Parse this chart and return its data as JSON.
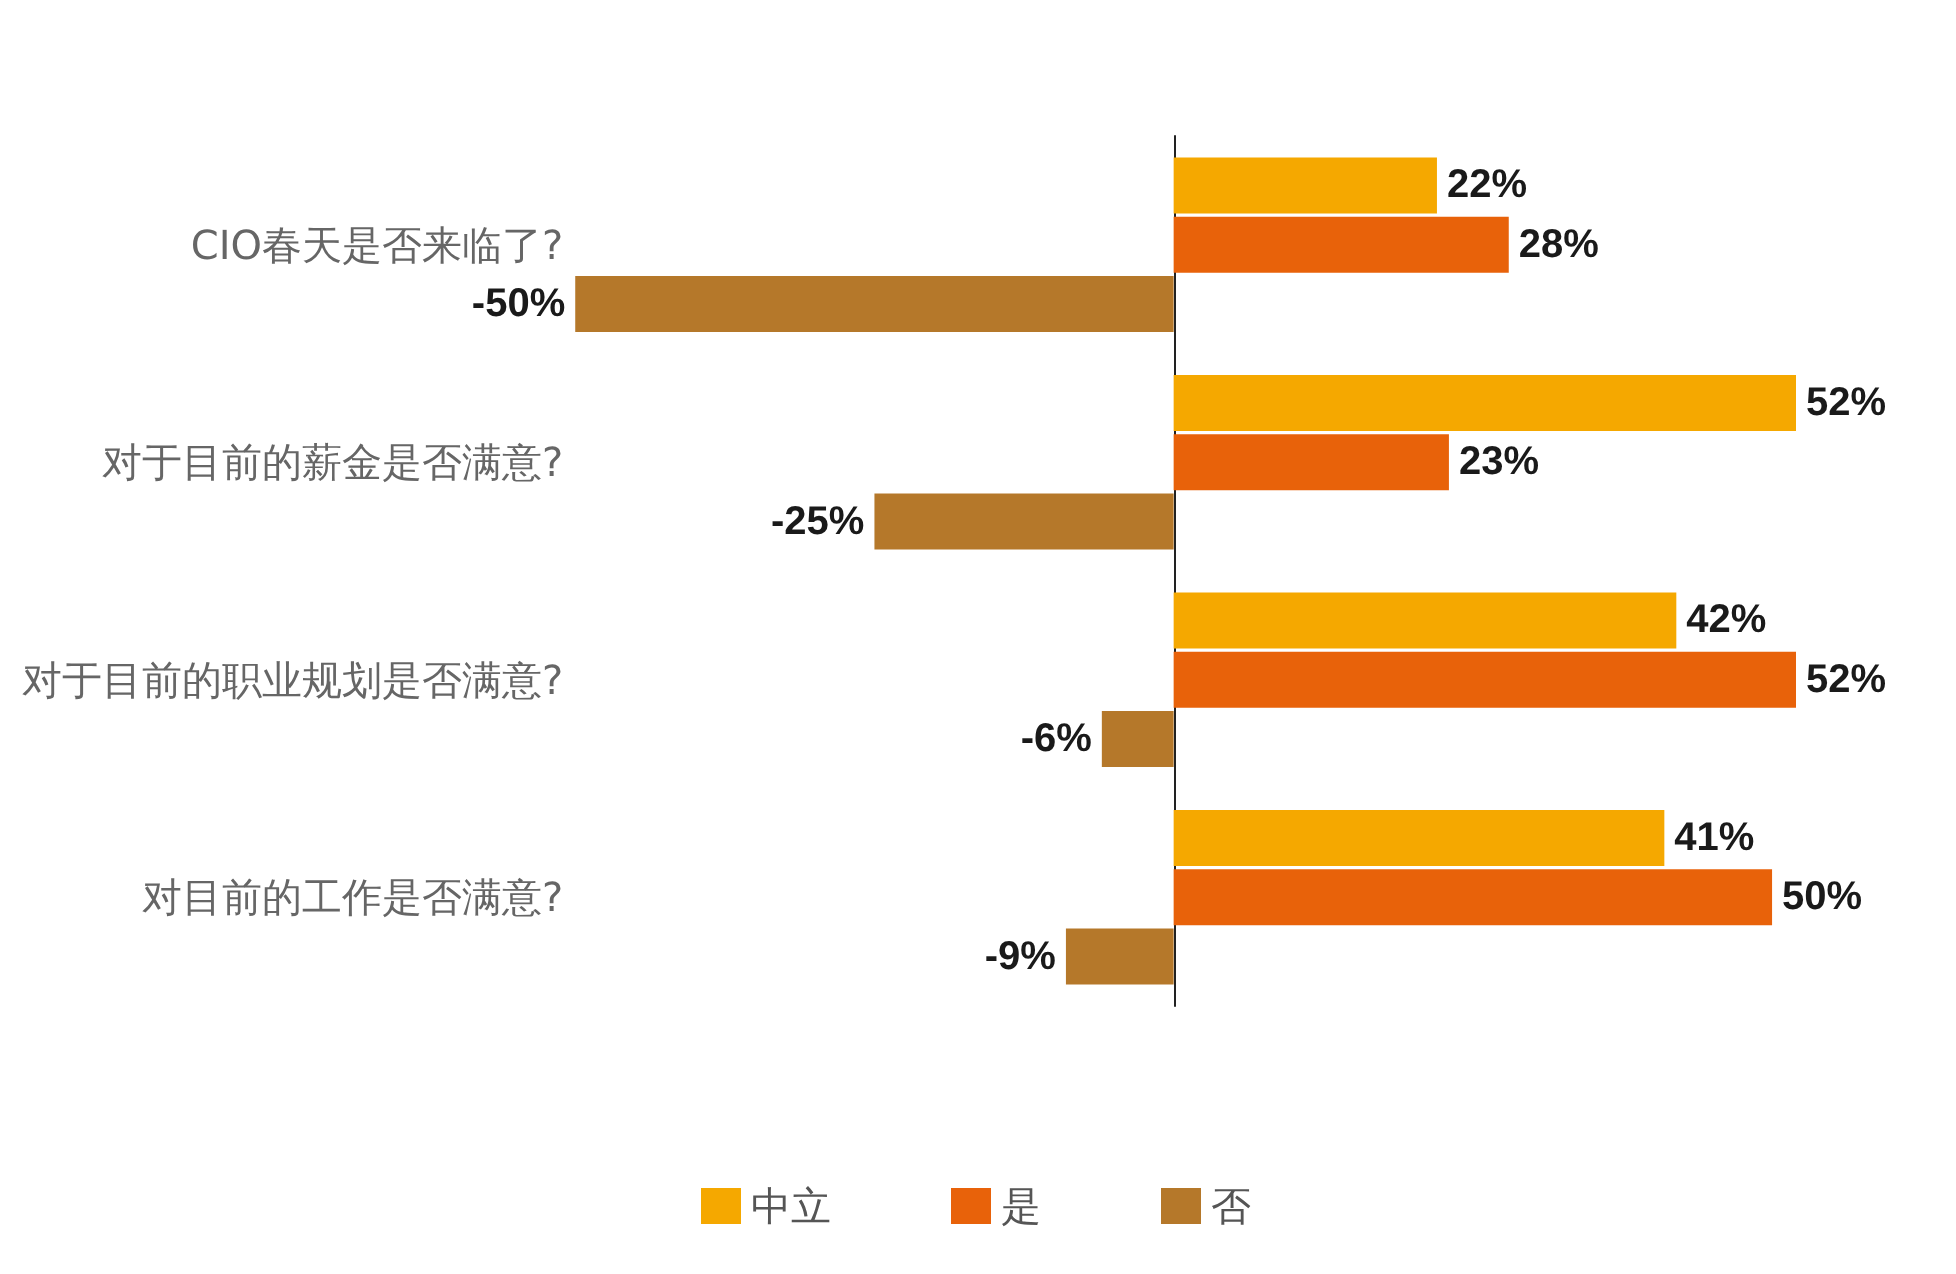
{
  "chart_data": {
    "type": "bar",
    "orientation": "horizontal",
    "categories": [
      "CIO春天是否来临了?",
      "对于目前的薪金是否满意?",
      "对于目前的职业规划是否满意?",
      "对目前的工作是否满意?"
    ],
    "series": [
      {
        "name": "中立",
        "color": "#f5a800",
        "values": [
          22,
          52,
          42,
          41
        ],
        "value_labels": [
          "22%",
          "52%",
          "42%",
          "41%"
        ]
      },
      {
        "name": "是",
        "color": "#e8620a",
        "values": [
          28,
          23,
          52,
          50
        ],
        "value_labels": [
          "28%",
          "23%",
          "52%",
          "50%"
        ]
      },
      {
        "name": "否",
        "color": "#b5782a",
        "values": [
          -50,
          -25,
          -6,
          -9
        ],
        "value_labels": [
          "-50%",
          "-25%",
          "-6%",
          "-9%"
        ]
      }
    ],
    "xlim": [
      -50,
      52
    ],
    "tick_labels": "y",
    "legend": "bottom"
  }
}
